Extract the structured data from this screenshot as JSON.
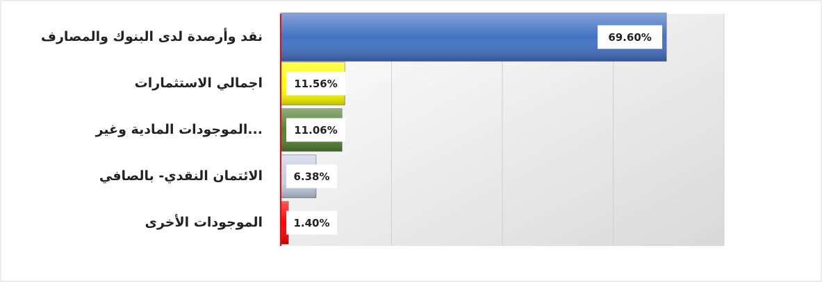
{
  "chart_data": {
    "type": "barh",
    "categories": [
      "نقد وأرصدة لدى البنوك والمصارف",
      "اجمالي الاستثمارات",
      "الموجودات  المادية وغير...",
      "الائتمان النقدي- بالصافي",
      "الموجودات الأخرى"
    ],
    "values": [
      69.6,
      11.56,
      11.06,
      6.38,
      1.4
    ],
    "value_labels": [
      "69.60%",
      "11.56%",
      "11.06%",
      "6.38%",
      "1.40%"
    ],
    "colors": [
      "#4472c4",
      "#ffff00",
      "#548235",
      "#c5d0e4",
      "#ff0000"
    ],
    "xlim": [
      0,
      80
    ],
    "xticks": [
      0,
      20,
      40,
      60,
      80
    ],
    "grid": true
  }
}
